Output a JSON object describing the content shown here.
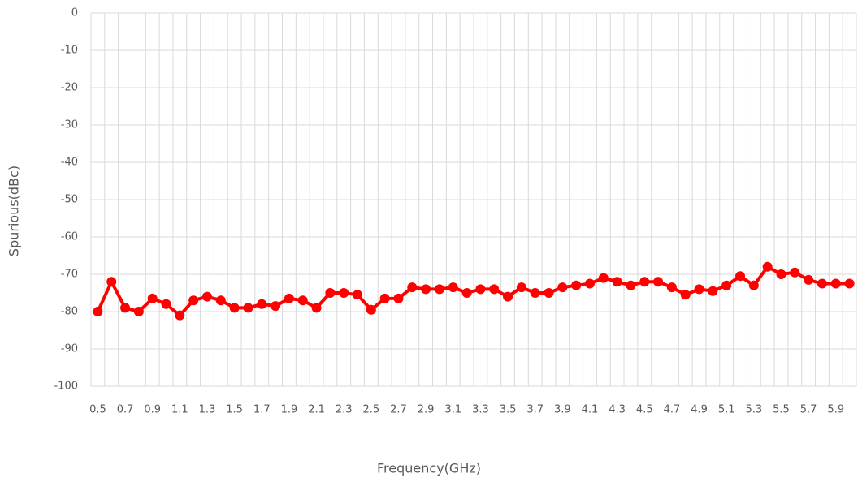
{
  "chart_data": {
    "type": "line",
    "x_label": "Frequency(GHz)",
    "y_label": "Spurious(dBc)",
    "categories": [
      "0.5",
      null,
      "0.7",
      null,
      "0.9",
      null,
      "1.1",
      null,
      "1.3",
      null,
      "1.5",
      null,
      "1.7",
      null,
      "1.9",
      null,
      "2.1",
      null,
      "2.3",
      null,
      "2.5",
      null,
      "2.7",
      null,
      "2.9",
      null,
      "3.1",
      null,
      "3.3",
      null,
      "3.5",
      null,
      "3.7",
      null,
      "3.9",
      null,
      "4.1",
      null,
      "4.3",
      null,
      "4.5",
      null,
      "4.7",
      null,
      "4.9",
      null,
      "5.1",
      null,
      "5.3",
      null,
      "5.5",
      null,
      "5.7",
      null,
      "5.9",
      null
    ],
    "values": [
      -80,
      -72,
      -79,
      -80,
      -76.5,
      -78,
      -81,
      -77,
      -76,
      -77,
      -79,
      -79,
      -78,
      -78.5,
      -76.5,
      -77,
      -79,
      -75,
      -75,
      -75.5,
      -79.5,
      -76.5,
      -76.5,
      -73.5,
      -74,
      -74,
      -73.5,
      -75,
      -74,
      -74,
      -76,
      -73.5,
      -75,
      -75,
      -73.5,
      -73,
      -72.5,
      -71,
      -72,
      -73,
      -72,
      -72,
      -73.5,
      -75.5,
      -74,
      -74.5,
      -73,
      -70.5,
      -73,
      -68,
      -70,
      -69.5,
      -71.5,
      -72.5,
      -72.5,
      -72.5
    ],
    "color": "#ff0000",
    "ylim": [
      -100,
      0
    ],
    "yticks": [
      -100,
      -90,
      -80,
      -70,
      -60,
      -50,
      -40,
      -30,
      -20,
      -10,
      0
    ],
    "grid": true
  }
}
